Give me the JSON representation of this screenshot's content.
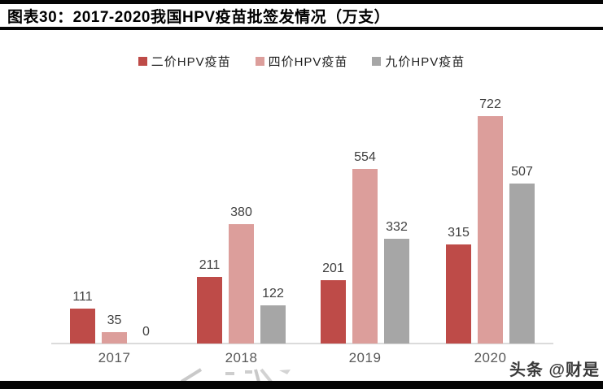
{
  "header": {
    "title": "图表30：2017-2020我国HPV疫苗批签发情况（万支）"
  },
  "chart_data": {
    "type": "bar",
    "title": "2017-2020我国HPV疫苗批签发情况",
    "unit": "万支",
    "categories": [
      "2017",
      "2018",
      "2019",
      "2020"
    ],
    "series": [
      {
        "name": "二价HPV疫苗",
        "color": "#BE4B48",
        "values": [
          111,
          211,
          201,
          315
        ]
      },
      {
        "name": "四价HPV疫苗",
        "color": "#DC9E9B",
        "values": [
          35,
          380,
          554,
          722
        ]
      },
      {
        "name": "九价HPV疫苗",
        "color": "#A6A6A6",
        "values": [
          0,
          122,
          332,
          507
        ]
      }
    ],
    "ylim": [
      0,
      760
    ],
    "grid": false,
    "legend_position": "top",
    "data_labels": true,
    "xlabel": "",
    "ylabel": "",
    "axis_color": "#DBDBDB",
    "value_label_color": "#404040",
    "category_label_color": "#595959"
  },
  "watermark": {
    "text": "头条 @财是"
  }
}
